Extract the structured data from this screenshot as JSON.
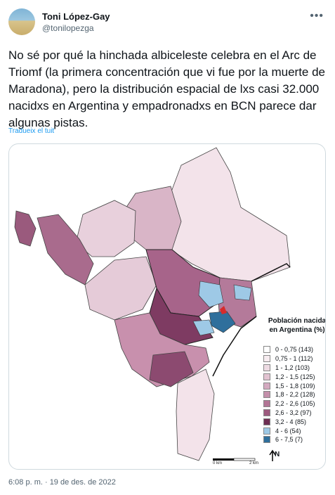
{
  "tweet": {
    "author_name": "Toni López-Gay",
    "author_handle": "@tonilopezga",
    "more_glyph": "•••",
    "text": "No sé por qué la hinchada albiceleste celebra en el Arc de Triomf (la primera concentración que vi fue por la muerte de Maradona), pero la distribución espacial de lxs casi 32.000 nacidxs en Argentina y empadronadxs en BCN parece dar algunas pistas.",
    "translate_label": "Tradueix el tuit",
    "timestamp": "6:08 p. m. · 19 de des. de 2022"
  },
  "map": {
    "legend_title_line1": "Población nacida",
    "legend_title_line2": "en Argentina (%)",
    "legend": [
      {
        "label": "0 - 0,75 (143)",
        "color": "#ffffff"
      },
      {
        "label": "0,75 - 1 (112)",
        "color": "#f7ecf0"
      },
      {
        "label": "1 - 1,2 (103)",
        "color": "#eedbe3"
      },
      {
        "label": "1,2 - 1,5 (125)",
        "color": "#e2c3d1"
      },
      {
        "label": "1,5 - 1,8 (109)",
        "color": "#d4aac0"
      },
      {
        "label": "1,8 - 2,2 (128)",
        "color": "#c490ab"
      },
      {
        "label": "2,2 - 2,6 (105)",
        "color": "#b27595"
      },
      {
        "label": "2,6 - 3,2 (97)",
        "color": "#9d5a7e"
      },
      {
        "label": "3,2 - 4 (85)",
        "color": "#6e2e52"
      },
      {
        "label": "4 - 6 (54)",
        "color": "#9ec9e6"
      },
      {
        "label": "6 - 7,5 (7)",
        "color": "#2f6f9c"
      }
    ],
    "scale_start": "0 km",
    "scale_end": "2 km",
    "north_label": "N"
  }
}
